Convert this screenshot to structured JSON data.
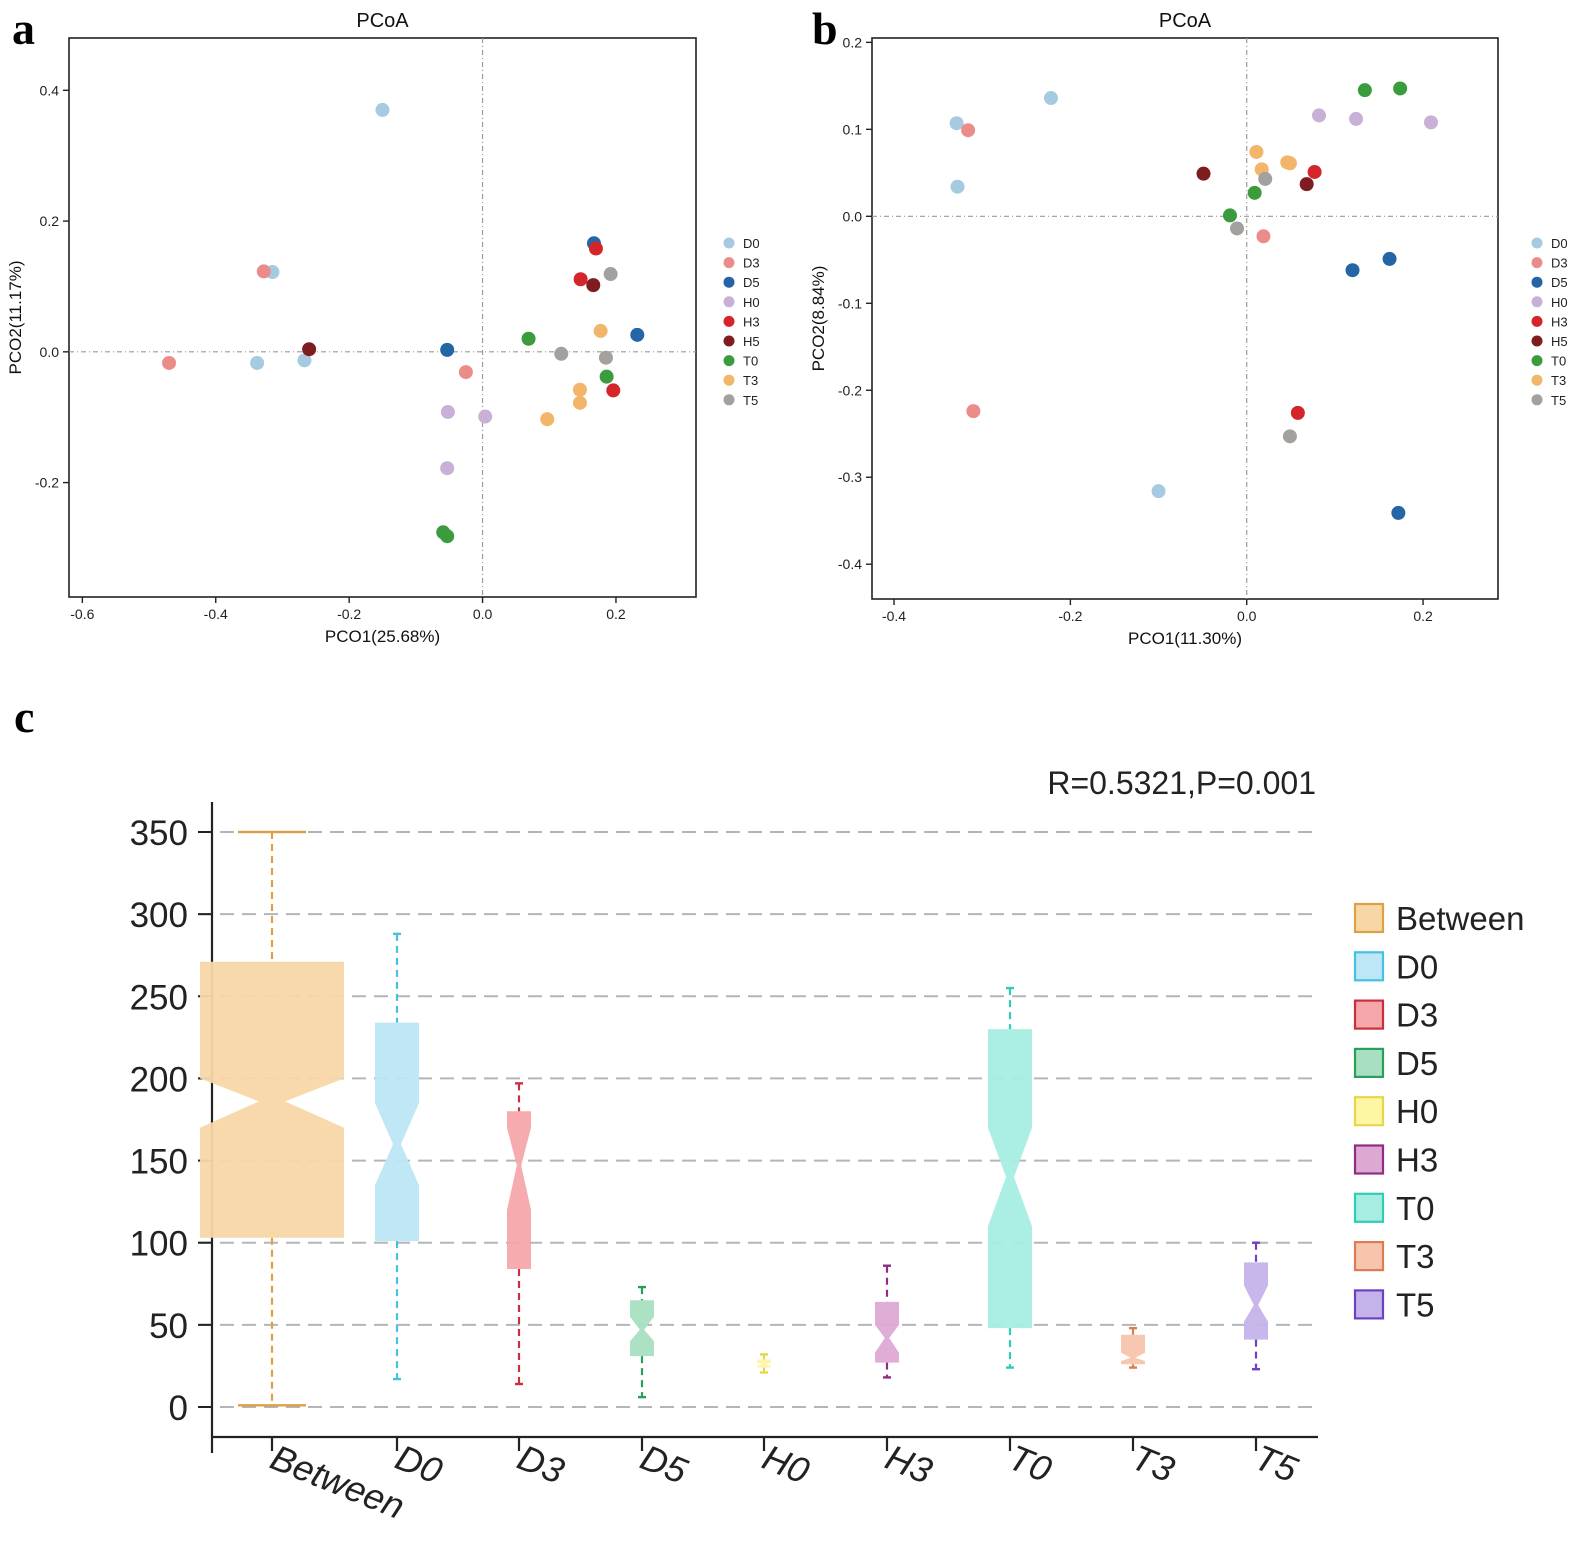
{
  "colors": {
    "D0": "#a6cbe0",
    "D3": "#ec8c8a",
    "D5": "#2465a5",
    "H0": "#c9b0d7",
    "H3": "#d3252a",
    "H5": "#7e1c1f",
    "T0": "#3a9c3c",
    "T3": "#f1b66a",
    "T5": "#a3a09e"
  },
  "panels": {
    "a": "a",
    "b": "b",
    "c": "c"
  },
  "chart_data": [
    {
      "panel": "a",
      "type": "scatter",
      "title": "PCoA",
      "xlabel": "PCO1(25.68%)",
      "ylabel": "PCO2(11.17%)",
      "xlim": [
        -0.62,
        0.32
      ],
      "ylim": [
        -0.375,
        0.48
      ],
      "xticks": [
        -0.6,
        -0.4,
        -0.2,
        0.0,
        0.2
      ],
      "xtick_labels": [
        "-0.6",
        "-0.4",
        "-0.2",
        "0.0",
        "0.2"
      ],
      "yticks": [
        -0.2,
        0.0,
        0.2,
        0.4
      ],
      "ytick_labels": [
        "-0.2",
        "0.0",
        "0.2",
        "0.4"
      ],
      "legend": [
        "D0",
        "D3",
        "D5",
        "H0",
        "H3",
        "H5",
        "T0",
        "T3",
        "T5"
      ],
      "series": [
        {
          "name": "D0",
          "points": [
            [
              -0.15,
              0.37
            ],
            [
              -0.315,
              0.122
            ],
            [
              -0.338,
              -0.017
            ],
            [
              -0.267,
              -0.013
            ]
          ]
        },
        {
          "name": "D3",
          "points": [
            [
              -0.328,
              0.123
            ],
            [
              -0.47,
              -0.017
            ],
            [
              -0.025,
              -0.031
            ]
          ]
        },
        {
          "name": "D5",
          "points": [
            [
              0.167,
              0.166
            ],
            [
              0.232,
              0.026
            ],
            [
              -0.053,
              0.003
            ]
          ]
        },
        {
          "name": "H0",
          "points": [
            [
              -0.052,
              -0.092
            ],
            [
              0.004,
              -0.099
            ],
            [
              -0.053,
              -0.178
            ]
          ]
        },
        {
          "name": "H3",
          "points": [
            [
              0.17,
              0.158
            ],
            [
              0.147,
              0.111
            ],
            [
              0.196,
              -0.059
            ]
          ]
        },
        {
          "name": "H5",
          "points": [
            [
              0.166,
              0.102
            ],
            [
              -0.26,
              0.004
            ]
          ]
        },
        {
          "name": "T0",
          "points": [
            [
              0.069,
              0.02
            ],
            [
              0.186,
              -0.038
            ],
            [
              -0.059,
              -0.276
            ],
            [
              -0.053,
              -0.282
            ]
          ]
        },
        {
          "name": "T3",
          "points": [
            [
              0.177,
              0.032
            ],
            [
              0.146,
              -0.058
            ],
            [
              0.146,
              -0.078
            ],
            [
              0.097,
              -0.103
            ]
          ]
        },
        {
          "name": "T5",
          "points": [
            [
              0.192,
              0.119
            ],
            [
              0.118,
              -0.003
            ],
            [
              0.185,
              -0.009
            ]
          ]
        }
      ]
    },
    {
      "panel": "b",
      "type": "scatter",
      "title": "PCoA",
      "xlabel": "PCO1(11.30%)",
      "ylabel": "PCO2(8.84%)",
      "xlim": [
        -0.425,
        0.285
      ],
      "ylim": [
        -0.44,
        0.205
      ],
      "xticks": [
        -0.4,
        -0.2,
        0.0,
        0.2
      ],
      "xtick_labels": [
        "-0.4",
        "-0.2",
        "0.0",
        "0.2"
      ],
      "yticks": [
        -0.4,
        -0.3,
        -0.2,
        -0.1,
        0.0,
        0.1,
        0.2
      ],
      "ytick_labels": [
        "-0.4",
        "-0.3",
        "-0.2",
        "-0.1",
        "0.0",
        "0.1",
        "0.2"
      ],
      "legend": [
        "D0",
        "D3",
        "D5",
        "H0",
        "H3",
        "H5",
        "T0",
        "T3",
        "T5"
      ],
      "series": [
        {
          "name": "D0",
          "points": [
            [
              -0.329,
              0.107
            ],
            [
              -0.222,
              0.136
            ],
            [
              -0.328,
              0.034
            ],
            [
              -0.1,
              -0.316
            ]
          ]
        },
        {
          "name": "D3",
          "points": [
            [
              -0.316,
              0.099
            ],
            [
              -0.31,
              -0.224
            ],
            [
              0.019,
              -0.023
            ]
          ]
        },
        {
          "name": "D5",
          "points": [
            [
              0.12,
              -0.062
            ],
            [
              0.162,
              -0.049
            ],
            [
              0.172,
              -0.341
            ]
          ]
        },
        {
          "name": "H0",
          "points": [
            [
              0.082,
              0.116
            ],
            [
              0.124,
              0.112
            ],
            [
              0.209,
              0.108
            ]
          ]
        },
        {
          "name": "H3",
          "points": [
            [
              0.077,
              0.051
            ],
            [
              0.058,
              -0.226
            ]
          ]
        },
        {
          "name": "H5",
          "points": [
            [
              -0.049,
              0.049
            ],
            [
              0.068,
              0.037
            ]
          ]
        },
        {
          "name": "T0",
          "points": [
            [
              0.134,
              0.145
            ],
            [
              0.174,
              0.147
            ],
            [
              0.009,
              0.027
            ],
            [
              -0.019,
              0.001
            ]
          ]
        },
        {
          "name": "T3",
          "points": [
            [
              0.011,
              0.074
            ],
            [
              0.017,
              0.054
            ],
            [
              0.046,
              0.062
            ],
            [
              0.049,
              0.061
            ]
          ]
        },
        {
          "name": "T5",
          "points": [
            [
              0.021,
              0.043
            ],
            [
              -0.011,
              -0.014
            ],
            [
              0.049,
              -0.253
            ]
          ]
        }
      ]
    },
    {
      "panel": "c",
      "type": "box",
      "annotation": "R=0.5321,P=0.001",
      "ylim": [
        -18,
        368
      ],
      "yticks": [
        0,
        50,
        100,
        150,
        200,
        250,
        300,
        350
      ],
      "ytick_labels": [
        "0",
        "50",
        "100",
        "150",
        "200",
        "250",
        "300",
        "350"
      ],
      "categories": [
        "Between",
        "D0",
        "D3",
        "D5",
        "H0",
        "H3",
        "T0",
        "T3",
        "T5"
      ],
      "legend": [
        "Between",
        "D0",
        "D3",
        "D5",
        "H0",
        "H3",
        "T0",
        "T3",
        "T5"
      ],
      "legend_colors": {
        "Between": {
          "fill": "#f7d7a6",
          "edge": "#dda046"
        },
        "D0": {
          "fill": "#bde6f6",
          "edge": "#45c1e2"
        },
        "D3": {
          "fill": "#f5a7ab",
          "edge": "#c9303d"
        },
        "D5": {
          "fill": "#a9dfc1",
          "edge": "#2b9e5c"
        },
        "H0": {
          "fill": "#fdf6a4",
          "edge": "#e6d74a"
        },
        "H3": {
          "fill": "#dda9d3",
          "edge": "#8f2c85"
        },
        "T0": {
          "fill": "#a7ede2",
          "edge": "#2ecdb5"
        },
        "T3": {
          "fill": "#f7c4ad",
          "edge": "#df7b52"
        },
        "T5": {
          "fill": "#c4b3ea",
          "edge": "#6b43c1"
        }
      },
      "boxes": [
        {
          "name": "Between",
          "whisker_low": 1,
          "q1": 103,
          "median": 186,
          "q3": 271,
          "whisker_high": 350,
          "notch_low": 170,
          "notch_high": 200
        },
        {
          "name": "D0",
          "whisker_low": 17,
          "q1": 101,
          "median": 160,
          "q3": 234,
          "whisker_high": 288,
          "notch_low": 135,
          "notch_high": 185
        },
        {
          "name": "D3",
          "whisker_low": 14,
          "q1": 84,
          "median": 147,
          "q3": 180,
          "whisker_high": 197,
          "notch_low": 120,
          "notch_high": 170
        },
        {
          "name": "D5",
          "whisker_low": 6,
          "q1": 31,
          "median": 47,
          "q3": 65,
          "whisker_high": 73,
          "notch_low": 40,
          "notch_high": 55
        },
        {
          "name": "H0",
          "whisker_low": 21,
          "q1": 24,
          "median": 26,
          "q3": 29,
          "whisker_high": 32,
          "notch_low": 25,
          "notch_high": 27
        },
        {
          "name": "H3",
          "whisker_low": 18,
          "q1": 27,
          "median": 42,
          "q3": 64,
          "whisker_high": 86,
          "notch_low": 33,
          "notch_high": 50
        },
        {
          "name": "T0",
          "whisker_low": 24,
          "q1": 48,
          "median": 140,
          "q3": 230,
          "whisker_high": 255,
          "notch_low": 110,
          "notch_high": 170
        },
        {
          "name": "T3",
          "whisker_low": 24,
          "q1": 26,
          "median": 30,
          "q3": 44,
          "whisker_high": 48,
          "notch_low": 28,
          "notch_high": 33
        },
        {
          "name": "T5",
          "whisker_low": 23,
          "q1": 41,
          "median": 62,
          "q3": 88,
          "whisker_high": 100,
          "notch_low": 52,
          "notch_high": 74
        }
      ]
    }
  ]
}
